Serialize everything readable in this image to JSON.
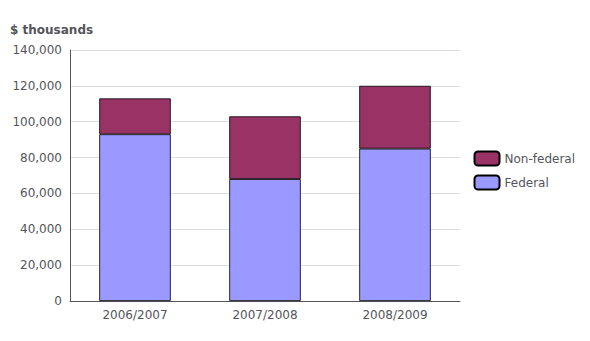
{
  "chart_data": {
    "type": "bar",
    "categories": [
      "2006/2007",
      "2007/2008",
      "2008/2009"
    ],
    "series": [
      {
        "name": "Federal",
        "color": "#9999ff",
        "values": [
          93000,
          68000,
          85000
        ]
      },
      {
        "name": "Non-federal",
        "color": "#993366",
        "values": [
          20000,
          35000,
          35000
        ]
      }
    ],
    "stacked": true,
    "ylabel": "$ thousands",
    "ylim": [
      0,
      140000
    ],
    "yticks": [
      0,
      {
        "value": 20000,
        "label": "20,000"
      },
      {
        "value": 40000,
        "label": "40,000"
      },
      {
        "value": 60000,
        "label": "60,000"
      },
      {
        "value": 80000,
        "label": "80,000"
      },
      {
        "value": 100000,
        "label": "100,000"
      },
      {
        "value": 120000,
        "label": "120,000"
      },
      {
        "value": 140000,
        "label": "140,000"
      }
    ],
    "grid": true,
    "legend": "right"
  }
}
